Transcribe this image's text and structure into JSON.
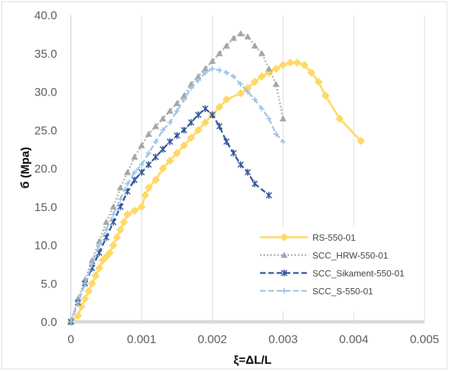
{
  "chart_data": {
    "type": "scatter",
    "xlabel": "ξ=ΔL/L",
    "ylabel": "б (Mpa)",
    "xlim": [
      0,
      0.005
    ],
    "ylim": [
      0,
      40
    ],
    "x_ticks": [
      "0",
      "0.001",
      "0.002",
      "0.003",
      "0.004",
      "0.005"
    ],
    "y_ticks": [
      "0.0",
      "5.0",
      "10.0",
      "15.0",
      "20.0",
      "25.0",
      "30.0",
      "35.0",
      "40.0"
    ],
    "grid": "vertical",
    "legend_position": "bottom-right",
    "series": [
      {
        "name": "RS-550-01",
        "color": "#FFD966",
        "marker": "diamond",
        "line": "solid",
        "points": [
          [
            0,
            0
          ],
          [
            0.0001,
            0.8
          ],
          [
            0.00015,
            2.0
          ],
          [
            0.0002,
            3.0
          ],
          [
            0.00025,
            4.0
          ],
          [
            0.0003,
            5.0
          ],
          [
            0.00035,
            6.0
          ],
          [
            0.0004,
            7.0
          ],
          [
            0.00045,
            8.0
          ],
          [
            0.0005,
            8.5
          ],
          [
            0.00055,
            9.0
          ],
          [
            0.0006,
            10.0
          ],
          [
            0.00065,
            11.0
          ],
          [
            0.0007,
            12.0
          ],
          [
            0.00075,
            13.0
          ],
          [
            0.0008,
            14.0
          ],
          [
            0.0009,
            14.5
          ],
          [
            0.001,
            15.0
          ],
          [
            0.00105,
            16.5
          ],
          [
            0.0011,
            17.5
          ],
          [
            0.0012,
            18.5
          ],
          [
            0.0013,
            20.0
          ],
          [
            0.0014,
            21.0
          ],
          [
            0.0015,
            22.0
          ],
          [
            0.0016,
            23.0
          ],
          [
            0.0017,
            24.0
          ],
          [
            0.0018,
            25.0
          ],
          [
            0.0019,
            26.0
          ],
          [
            0.002,
            27.0
          ],
          [
            0.0021,
            28.0
          ],
          [
            0.0022,
            29.0
          ],
          [
            0.0024,
            29.8
          ],
          [
            0.0025,
            30.5
          ],
          [
            0.0026,
            31.3
          ],
          [
            0.0027,
            32.0
          ],
          [
            0.0028,
            32.5
          ],
          [
            0.0029,
            33.0
          ],
          [
            0.003,
            33.5
          ],
          [
            0.0031,
            33.8
          ],
          [
            0.0032,
            33.8
          ],
          [
            0.0033,
            33.5
          ],
          [
            0.0034,
            32.5
          ],
          [
            0.0035,
            31.3
          ],
          [
            0.0036,
            29.5
          ],
          [
            0.0038,
            26.5
          ],
          [
            0.0041,
            23.6
          ]
        ]
      },
      {
        "name": "SCC_HRW-550-01",
        "color": "#A5A5A5",
        "marker": "triangle",
        "line": "dotted",
        "points": [
          [
            0,
            0
          ],
          [
            0.0001,
            3.0
          ],
          [
            0.0002,
            5.5
          ],
          [
            0.0003,
            8.0
          ],
          [
            0.0004,
            10.5
          ],
          [
            0.0005,
            13.0
          ],
          [
            0.0006,
            15.0
          ],
          [
            0.0007,
            17.5
          ],
          [
            0.0008,
            19.5
          ],
          [
            0.0009,
            21.5
          ],
          [
            0.001,
            23.0
          ],
          [
            0.0011,
            24.5
          ],
          [
            0.0012,
            25.5
          ],
          [
            0.0013,
            26.5
          ],
          [
            0.0014,
            27.5
          ],
          [
            0.0015,
            28.5
          ],
          [
            0.0016,
            29.5
          ],
          [
            0.0017,
            31.0
          ],
          [
            0.0018,
            32.0
          ],
          [
            0.0019,
            33.0
          ],
          [
            0.002,
            34.0
          ],
          [
            0.0021,
            35.0
          ],
          [
            0.0022,
            36.0
          ],
          [
            0.0023,
            37.0
          ],
          [
            0.0024,
            37.6
          ],
          [
            0.0025,
            37.2
          ],
          [
            0.0026,
            36.0
          ],
          [
            0.0027,
            35.0
          ],
          [
            0.0028,
            33.0
          ],
          [
            0.0029,
            31.0
          ],
          [
            0.003,
            26.5
          ]
        ]
      },
      {
        "name": "SCC_Sikament-550-01",
        "color": "#2F5597",
        "marker": "star",
        "line": "dashed",
        "points": [
          [
            0,
            0
          ],
          [
            0.0001,
            2.5
          ],
          [
            0.0002,
            5.0
          ],
          [
            0.0003,
            7.0
          ],
          [
            0.0004,
            9.0
          ],
          [
            0.0005,
            11.0
          ],
          [
            0.0006,
            13.0
          ],
          [
            0.0007,
            15.0
          ],
          [
            0.0008,
            17.0
          ],
          [
            0.0009,
            18.5
          ],
          [
            0.001,
            19.5
          ],
          [
            0.0011,
            20.5
          ],
          [
            0.0012,
            21.5
          ],
          [
            0.0013,
            22.5
          ],
          [
            0.0014,
            23.5
          ],
          [
            0.0015,
            24.3
          ],
          [
            0.0016,
            25.0
          ],
          [
            0.0017,
            26.0
          ],
          [
            0.0018,
            27.0
          ],
          [
            0.0019,
            27.8
          ],
          [
            0.002,
            27.0
          ],
          [
            0.0021,
            25.5
          ],
          [
            0.0022,
            23.5
          ],
          [
            0.0023,
            22.0
          ],
          [
            0.0024,
            20.5
          ],
          [
            0.0025,
            19.5
          ],
          [
            0.0026,
            18.0
          ],
          [
            0.0028,
            16.5
          ]
        ]
      },
      {
        "name": "SCC_S-550-01",
        "color": "#9DC3E6",
        "marker": "plus",
        "line": "dashed",
        "points": [
          [
            0,
            0
          ],
          [
            0.0001,
            2.5
          ],
          [
            0.0002,
            5.0
          ],
          [
            0.0003,
            7.5
          ],
          [
            0.0004,
            10.0
          ],
          [
            0.0005,
            12.0
          ],
          [
            0.0006,
            14.0
          ],
          [
            0.0007,
            16.0
          ],
          [
            0.0008,
            18.0
          ],
          [
            0.0009,
            19.5
          ],
          [
            0.001,
            20.5
          ],
          [
            0.0011,
            22.0
          ],
          [
            0.0012,
            23.5
          ],
          [
            0.0013,
            25.0
          ],
          [
            0.0014,
            26.0
          ],
          [
            0.0015,
            27.5
          ],
          [
            0.0016,
            29.0
          ],
          [
            0.0017,
            30.5
          ],
          [
            0.0018,
            31.5
          ],
          [
            0.0019,
            32.5
          ],
          [
            0.002,
            33.0
          ],
          [
            0.0021,
            32.8
          ],
          [
            0.0022,
            32.5
          ],
          [
            0.0023,
            32.0
          ],
          [
            0.0024,
            31.0
          ],
          [
            0.0025,
            30.0
          ],
          [
            0.0026,
            29.0
          ],
          [
            0.0027,
            27.8
          ],
          [
            0.0028,
            26.5
          ],
          [
            0.0029,
            24.5
          ],
          [
            0.003,
            23.5
          ]
        ]
      }
    ]
  }
}
